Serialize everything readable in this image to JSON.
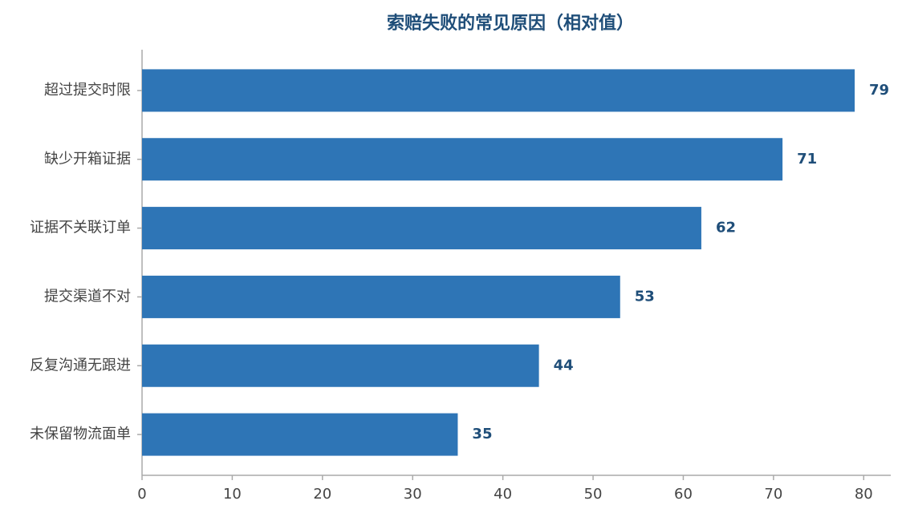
{
  "chart_data": {
    "type": "barh",
    "title": "索赔失败的常见原因（相对值）",
    "categories": [
      "超过提交时限",
      "缺少开箱证据",
      "证据不关联订单",
      "提交渠道不对",
      "反复沟通无跟进",
      "未保留物流面单"
    ],
    "values": [
      79,
      71,
      62,
      53,
      44,
      35
    ],
    "color": "#2e75b6",
    "xlim": [
      0,
      83
    ],
    "xticks": [
      0,
      10,
      20,
      30,
      40,
      50,
      60,
      70,
      80
    ]
  }
}
